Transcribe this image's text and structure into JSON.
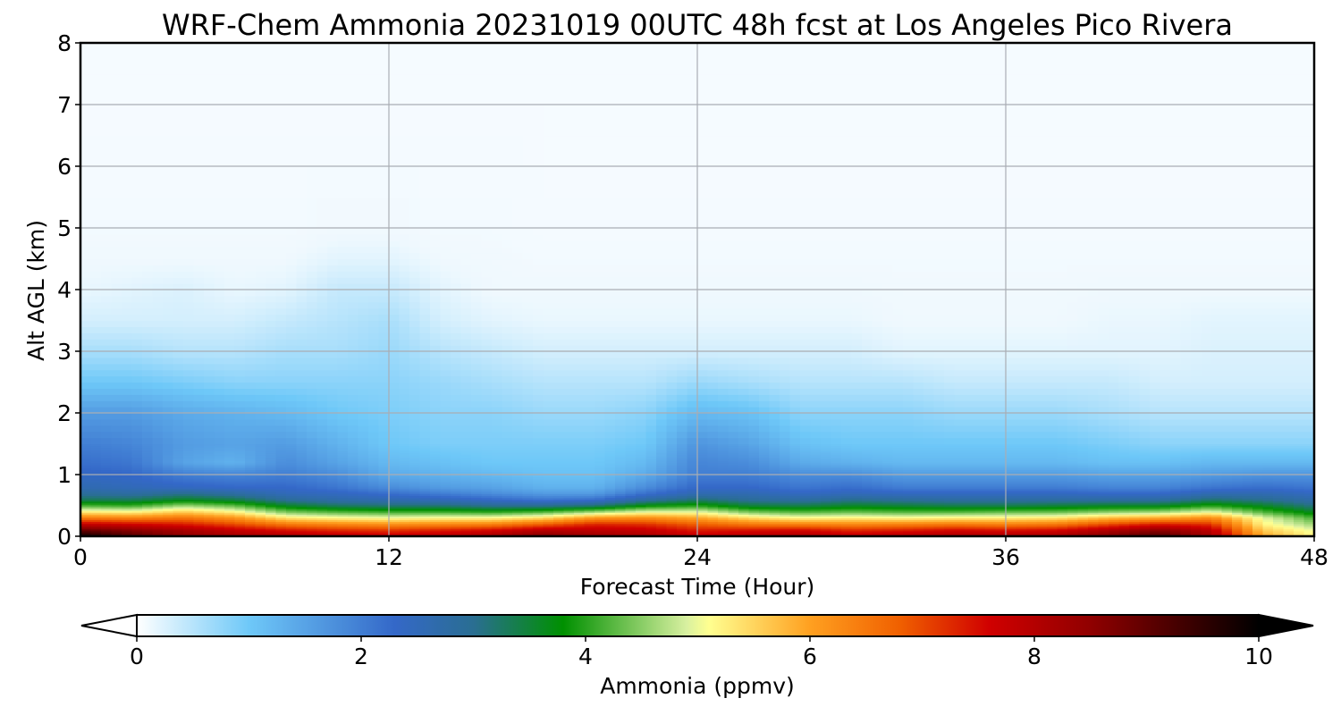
{
  "chart_data": {
    "type": "heatmap",
    "title": "WRF-Chem Ammonia  20231019 00UTC 48h fcst at Los Angeles Pico Rivera",
    "xlabel": "Forecast Time (Hour)",
    "ylabel": "Alt AGL (km)",
    "xlim": [
      0,
      48
    ],
    "ylim": [
      0,
      8
    ],
    "xticks": [
      "0",
      "12",
      "24",
      "36",
      "48"
    ],
    "yticks": [
      "0",
      "1",
      "2",
      "3",
      "4",
      "5",
      "6",
      "7",
      "8"
    ],
    "grid": true,
    "colorbar": {
      "label": "Ammonia  (ppmv)",
      "ticks": [
        "0",
        "2",
        "4",
        "6",
        "8",
        "10"
      ],
      "range": [
        0,
        10
      ],
      "extend": "both",
      "placement": "bottom",
      "stops": [
        {
          "v": 0,
          "c": "#ffffff"
        },
        {
          "v": 1,
          "c": "#6ec8f8"
        },
        {
          "v": 2.3,
          "c": "#3468c8"
        },
        {
          "v": 3.0,
          "c": "#2a6e92"
        },
        {
          "v": 3.8,
          "c": "#009000"
        },
        {
          "v": 4.9,
          "c": "#d8f0a0"
        },
        {
          "v": 5.1,
          "c": "#ffff90"
        },
        {
          "v": 6.0,
          "c": "#ffa020"
        },
        {
          "v": 6.8,
          "c": "#f06000"
        },
        {
          "v": 7.6,
          "c": "#d00000"
        },
        {
          "v": 8.5,
          "c": "#900000"
        },
        {
          "v": 10,
          "c": "#000000"
        }
      ]
    },
    "x_hours": [
      0,
      2,
      4,
      6,
      8,
      10,
      12,
      14,
      16,
      18,
      20,
      22,
      24,
      26,
      28,
      30,
      32,
      34,
      36,
      38,
      40,
      42,
      44,
      46,
      48
    ],
    "z_levels_km": [
      0,
      0.1,
      0.2,
      0.3,
      0.4,
      0.5,
      0.6,
      0.7,
      0.8,
      1.0,
      1.2,
      1.5,
      2.0,
      2.5,
      3.0,
      3.5,
      4.0,
      4.5,
      5.0,
      6.0,
      7.0,
      8.0
    ],
    "values_ppmv": [
      [
        10.0,
        9.0,
        7.8,
        6.5,
        5.3,
        4.2,
        3.3,
        2.9,
        2.6,
        2.4,
        2.2,
        2.0,
        1.6,
        1.0,
        0.6,
        0.3,
        0.15,
        0.1,
        0.05,
        0.03,
        0.02,
        0.02
      ],
      [
        9.2,
        8.6,
        7.6,
        6.4,
        5.2,
        4.1,
        3.3,
        2.8,
        2.5,
        2.3,
        2.1,
        1.9,
        1.6,
        1.0,
        0.6,
        0.3,
        0.2,
        0.1,
        0.05,
        0.03,
        0.02,
        0.02
      ],
      [
        8.6,
        8.2,
        7.4,
        6.6,
        5.6,
        4.6,
        3.6,
        3.0,
        2.4,
        2.0,
        1.5,
        1.6,
        1.4,
        0.9,
        0.5,
        0.3,
        0.25,
        0.1,
        0.05,
        0.03,
        0.02,
        0.02
      ],
      [
        8.3,
        7.8,
        7.0,
        6.2,
        5.2,
        4.3,
        3.4,
        2.8,
        2.3,
        1.9,
        1.3,
        1.5,
        1.3,
        0.8,
        0.5,
        0.3,
        0.15,
        0.1,
        0.05,
        0.03,
        0.02,
        0.02
      ],
      [
        8.2,
        7.5,
        6.5,
        5.4,
        4.4,
        3.6,
        2.9,
        2.5,
        2.3,
        2.0,
        1.8,
        1.6,
        1.2,
        0.8,
        0.6,
        0.4,
        0.2,
        0.1,
        0.05,
        0.03,
        0.02,
        0.02
      ],
      [
        8.0,
        7.3,
        6.3,
        5.2,
        4.2,
        3.3,
        2.7,
        2.4,
        2.1,
        1.8,
        1.5,
        1.3,
        1.0,
        0.8,
        0.6,
        0.5,
        0.4,
        0.2,
        0.08,
        0.03,
        0.02,
        0.02
      ],
      [
        7.8,
        7.2,
        6.2,
        5.1,
        4.1,
        3.2,
        2.6,
        2.2,
        1.8,
        1.4,
        1.2,
        1.0,
        0.9,
        0.8,
        0.7,
        0.6,
        0.4,
        0.2,
        0.08,
        0.03,
        0.02,
        0.02
      ],
      [
        8.0,
        7.4,
        6.3,
        5.2,
        4.1,
        3.2,
        2.5,
        2.0,
        1.6,
        1.3,
        1.1,
        0.9,
        0.8,
        0.7,
        0.5,
        0.3,
        0.2,
        0.1,
        0.05,
        0.03,
        0.02,
        0.02
      ],
      [
        8.3,
        7.6,
        6.4,
        5.2,
        4.0,
        3.0,
        2.3,
        1.8,
        1.5,
        1.2,
        1.0,
        0.9,
        0.8,
        0.6,
        0.4,
        0.2,
        0.1,
        0.08,
        0.05,
        0.03,
        0.02,
        0.02
      ],
      [
        8.8,
        8.0,
        6.8,
        5.5,
        4.2,
        3.0,
        2.1,
        1.6,
        1.3,
        1.1,
        1.0,
        0.9,
        0.7,
        0.5,
        0.3,
        0.15,
        0.1,
        0.05,
        0.03,
        0.02,
        0.02,
        0.02
      ],
      [
        8.4,
        7.9,
        7.3,
        6.2,
        4.6,
        3.2,
        2.2,
        1.6,
        1.3,
        1.1,
        1.0,
        0.9,
        0.7,
        0.5,
        0.3,
        0.15,
        0.1,
        0.05,
        0.03,
        0.02,
        0.02,
        0.02
      ],
      [
        8.2,
        7.8,
        7.2,
        6.3,
        5.0,
        3.8,
        2.8,
        2.2,
        1.8,
        1.4,
        1.2,
        1.0,
        0.8,
        0.5,
        0.3,
        0.15,
        0.1,
        0.05,
        0.03,
        0.02,
        0.02,
        0.02
      ],
      [
        7.8,
        7.4,
        6.8,
        6.0,
        5.0,
        4.0,
        3.2,
        2.6,
        2.3,
        2.0,
        1.9,
        1.7,
        1.2,
        0.7,
        0.3,
        0.15,
        0.1,
        0.05,
        0.03,
        0.02,
        0.02,
        0.02
      ],
      [
        8.0,
        7.5,
        6.5,
        5.5,
        4.4,
        3.5,
        2.9,
        2.6,
        2.3,
        2.0,
        1.8,
        1.5,
        1.1,
        0.6,
        0.3,
        0.15,
        0.1,
        0.05,
        0.03,
        0.02,
        0.02,
        0.02
      ],
      [
        8.2,
        7.6,
        6.4,
        5.2,
        4.2,
        3.4,
        2.8,
        2.4,
        2.1,
        1.8,
        1.4,
        1.1,
        0.8,
        0.5,
        0.3,
        0.15,
        0.1,
        0.05,
        0.03,
        0.02,
        0.02,
        0.02
      ],
      [
        7.9,
        7.3,
        6.3,
        5.3,
        4.3,
        3.6,
        3.0,
        2.5,
        2.2,
        1.8,
        1.3,
        1.0,
        0.8,
        0.5,
        0.3,
        0.15,
        0.1,
        0.05,
        0.03,
        0.02,
        0.02,
        0.02
      ],
      [
        8.1,
        7.4,
        6.4,
        5.2,
        4.2,
        3.5,
        2.9,
        2.4,
        2.0,
        1.6,
        1.2,
        1.0,
        0.8,
        0.5,
        0.2,
        0.1,
        0.08,
        0.05,
        0.03,
        0.02,
        0.02,
        0.02
      ],
      [
        8.2,
        7.6,
        6.5,
        5.3,
        4.2,
        3.4,
        2.8,
        2.4,
        2.0,
        1.6,
        1.2,
        1.0,
        0.7,
        0.4,
        0.2,
        0.1,
        0.08,
        0.05,
        0.03,
        0.02,
        0.02,
        0.02
      ],
      [
        8.2,
        7.5,
        6.4,
        5.3,
        4.3,
        3.4,
        2.8,
        2.4,
        2.0,
        1.6,
        1.2,
        1.0,
        0.7,
        0.4,
        0.2,
        0.1,
        0.08,
        0.05,
        0.03,
        0.02,
        0.02,
        0.02
      ],
      [
        8.3,
        7.6,
        6.5,
        5.4,
        4.3,
        3.5,
        2.8,
        2.4,
        2.0,
        1.6,
        1.2,
        1.0,
        0.7,
        0.4,
        0.2,
        0.1,
        0.08,
        0.05,
        0.03,
        0.02,
        0.02,
        0.02
      ],
      [
        8.8,
        8.1,
        7.0,
        5.8,
        4.5,
        3.6,
        2.8,
        2.3,
        1.9,
        1.5,
        1.1,
        0.9,
        0.6,
        0.4,
        0.2,
        0.15,
        0.1,
        0.05,
        0.03,
        0.02,
        0.02,
        0.02
      ],
      [
        9.3,
        8.6,
        7.4,
        6.0,
        4.6,
        3.6,
        2.8,
        2.3,
        1.9,
        1.5,
        1.1,
        0.8,
        0.5,
        0.3,
        0.2,
        0.15,
        0.1,
        0.05,
        0.03,
        0.02,
        0.02,
        0.02
      ],
      [
        8.3,
        7.9,
        7.2,
        6.3,
        5.0,
        4.0,
        3.2,
        2.6,
        2.1,
        1.6,
        1.2,
        0.8,
        0.5,
        0.3,
        0.25,
        0.2,
        0.1,
        0.05,
        0.03,
        0.02,
        0.02,
        0.02
      ],
      [
        6.0,
        5.6,
        5.2,
        5.0,
        4.2,
        3.6,
        3.0,
        2.6,
        2.2,
        1.7,
        1.2,
        0.8,
        0.5,
        0.3,
        0.25,
        0.2,
        0.1,
        0.05,
        0.03,
        0.02,
        0.02,
        0.02
      ],
      [
        5.2,
        5.0,
        4.6,
        4.2,
        3.6,
        3.1,
        2.7,
        2.4,
        2.1,
        1.7,
        1.2,
        0.8,
        0.5,
        0.3,
        0.25,
        0.2,
        0.1,
        0.05,
        0.03,
        0.02,
        0.02,
        0.02
      ]
    ]
  }
}
